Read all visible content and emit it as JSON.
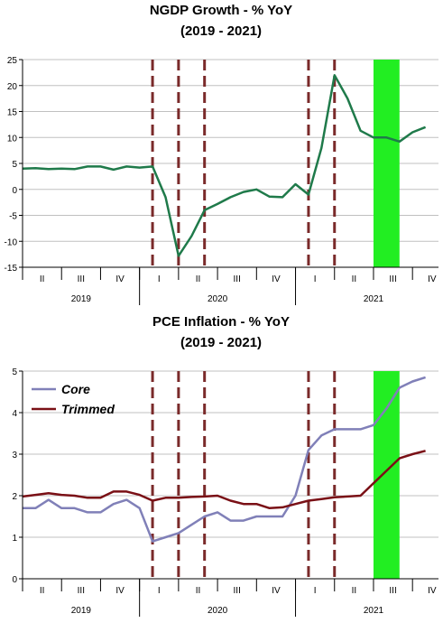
{
  "chart_data": [
    {
      "type": "line",
      "title": "NGDP Growth - % YoY",
      "subtitle": "(2019 - 2021)",
      "quarter_labels": [
        "II",
        "III",
        "IV",
        "I",
        "II",
        "III",
        "IV",
        "I",
        "II",
        "III",
        "IV"
      ],
      "year_labels": [
        "2019",
        "2020",
        "2021"
      ],
      "ylim": [
        -15,
        25
      ],
      "yticks": [
        -15,
        -10,
        -5,
        0,
        5,
        10,
        15,
        20,
        25
      ],
      "grid": "horizontal",
      "x_months_range": [
        0,
        32
      ],
      "vlines_months": [
        10,
        12,
        14,
        22,
        24
      ],
      "highlight_months": [
        27,
        29
      ],
      "series": [
        {
          "name": "",
          "color": "#1f7a4a",
          "x": [
            0,
            1,
            2,
            3,
            4,
            5,
            6,
            7,
            8,
            9,
            10,
            11,
            12,
            13,
            14,
            15,
            16,
            17,
            18,
            19,
            20,
            21,
            22,
            23,
            24,
            25,
            26,
            27,
            28,
            29,
            30,
            31
          ],
          "y": [
            4.0,
            4.1,
            3.9,
            4.0,
            3.9,
            4.4,
            4.4,
            3.8,
            4.4,
            4.2,
            4.4,
            -1.5,
            -12.8,
            -9.0,
            -4.0,
            -2.8,
            -1.5,
            -0.5,
            0.0,
            -1.4,
            -1.5,
            1.0,
            -1.0,
            8.0,
            22.0,
            17.5,
            11.3,
            10.0,
            10.0,
            9.2,
            11.0,
            12.0
          ]
        }
      ]
    },
    {
      "type": "line",
      "title": "PCE Inflation - % YoY",
      "subtitle": "(2019 - 2021)",
      "quarter_labels": [
        "II",
        "III",
        "IV",
        "I",
        "II",
        "III",
        "IV",
        "I",
        "II",
        "III",
        "IV"
      ],
      "year_labels": [
        "2019",
        "2020",
        "2021"
      ],
      "ylim": [
        0,
        5
      ],
      "yticks": [
        0,
        1,
        2,
        3,
        4,
        5
      ],
      "grid": "horizontal",
      "legend": "top-left",
      "x_months_range": [
        0,
        32
      ],
      "vlines_months": [
        10,
        12,
        14,
        22,
        24
      ],
      "highlight_months": [
        27,
        29
      ],
      "series": [
        {
          "name": "Core",
          "color": "#8080b8",
          "x": [
            0,
            1,
            2,
            3,
            4,
            5,
            6,
            7,
            8,
            9,
            10,
            11,
            12,
            13,
            14,
            15,
            16,
            17,
            18,
            19,
            20,
            21,
            22,
            23,
            24,
            25,
            26,
            27,
            28,
            29,
            30,
            31
          ],
          "y": [
            1.7,
            1.7,
            1.9,
            1.7,
            1.7,
            1.6,
            1.6,
            1.8,
            1.9,
            1.7,
            0.9,
            1.0,
            1.1,
            1.3,
            1.5,
            1.6,
            1.4,
            1.4,
            1.5,
            1.5,
            1.5,
            2.0,
            3.1,
            3.45,
            3.6,
            3.6,
            3.6,
            3.7,
            4.1,
            4.6,
            4.75,
            4.85
          ]
        },
        {
          "name": "Trimmed",
          "color": "#7a1016",
          "x": [
            0,
            1,
            2,
            3,
            4,
            5,
            6,
            7,
            8,
            9,
            10,
            11,
            12,
            13,
            14,
            15,
            16,
            17,
            18,
            19,
            20,
            21,
            22,
            23,
            24,
            25,
            26,
            27,
            28,
            29,
            30,
            31
          ],
          "y": [
            1.98,
            2.02,
            2.06,
            2.02,
            2.0,
            1.95,
            1.95,
            2.1,
            2.1,
            2.02,
            1.88,
            1.95,
            1.95,
            1.97,
            1.98,
            2.0,
            1.88,
            1.8,
            1.8,
            1.7,
            1.72,
            1.8,
            1.88,
            1.92,
            1.96,
            1.98,
            2.0,
            2.3,
            2.6,
            2.9,
            3.0,
            3.08
          ]
        }
      ]
    }
  ]
}
